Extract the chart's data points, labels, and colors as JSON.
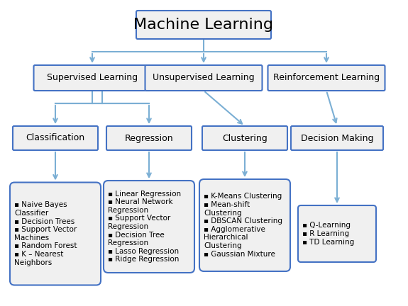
{
  "title": "Machine Learning",
  "level1": [
    "Supervised Learning",
    "Unsupervised Learning",
    "Reinforcement Learning"
  ],
  "level2": [
    "Classification",
    "Regression",
    "Clustering",
    "Decision Making"
  ],
  "level3": [
    "▪ Naive Bayes\nClassifier\n▪ Decision Trees\n▪ Support Vector\nMachines\n▪ Random Forest\n▪ K – Nearest\nNeighbors",
    "▪ Linear Regression\n▪ Neural Network\nRegression\n▪ Support Vector\nRegression\n▪ Decision Tree\nRegression\n▪ Lasso Regression\n▪ Ridge Regression",
    "▪ K-Means Clustering\n▪ Mean-shift\nClustering\n▪ DBSCAN Clustering\n▪ Agglomerative\nHierarchical\nClustering\n▪ Gaussian Mixture",
    "▪ Q-Learning\n▪ R Learning\n▪ TD Learning"
  ],
  "bg_color": "#ffffff",
  "box_bg": "#f0f0f0",
  "box_border": "#4472c4",
  "arrow_color": "#7bafd4",
  "text_color": "#000000",
  "title_fontsize": 16,
  "label_fontsize": 9,
  "detail_fontsize": 7.5
}
